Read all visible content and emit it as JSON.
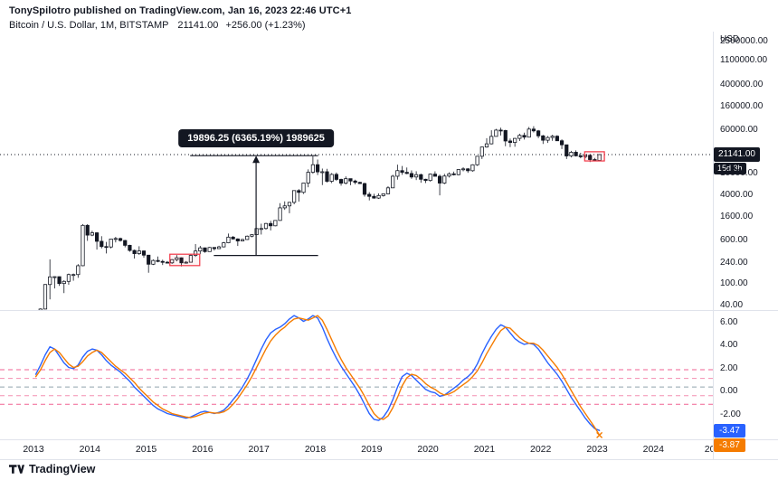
{
  "header": {
    "published_line": "TonySpilotro published on TradingView.com, Jan 16, 2023 22:46 UTC+1",
    "symbol_title": "Bitcoin / U.S. Dollar, 1M, BITSTAMP",
    "last_price": "21141.00",
    "change": "+256.00 (+1.23%)"
  },
  "price_scale": {
    "currency": "USD",
    "ticks": [
      {
        "label": "2500000.00",
        "value": 2500000
      },
      {
        "label": "1100000.00",
        "value": 1100000
      },
      {
        "label": "400000.00",
        "value": 400000
      },
      {
        "label": "160000.00",
        "value": 160000
      },
      {
        "label": "60000.00",
        "value": 60000
      },
      {
        "label": "10000.00",
        "value": 10000
      },
      {
        "label": "4000.00",
        "value": 4000
      },
      {
        "label": "1600.00",
        "value": 1600
      },
      {
        "label": "600.00",
        "value": 600
      },
      {
        "label": "240.00",
        "value": 240
      },
      {
        "label": "100.00",
        "value": 100
      },
      {
        "label": "40.00",
        "value": 40
      }
    ],
    "current_price_label": "21141.00",
    "countdown": "15d 3h"
  },
  "indicator": {
    "ticks": [
      {
        "label": "6.00",
        "value": 6
      },
      {
        "label": "4.00",
        "value": 4
      },
      {
        "label": "2.00",
        "value": 2
      },
      {
        "label": "0.00",
        "value": 0
      },
      {
        "label": "-2.00",
        "value": -2
      }
    ],
    "last_blue": "-3.47",
    "last_orange": "-3.87",
    "last_values": [
      -3.47,
      -3.87
    ],
    "colors": {
      "line": "#2962ff",
      "signal": "#f57c00"
    },
    "levels": [
      {
        "value": 1.8,
        "color": "#f06292"
      },
      {
        "value": 1.05,
        "color": "#f48fb1"
      },
      {
        "value": 0.3,
        "color": "#90a4ae"
      },
      {
        "value": -0.45,
        "color": "#f48fb1"
      },
      {
        "value": -1.2,
        "color": "#f06292"
      }
    ]
  },
  "time_scale": {
    "labels": [
      {
        "text": "2013",
        "t": 2013
      },
      {
        "text": "2014",
        "t": 2014
      },
      {
        "text": "2015",
        "t": 2015
      },
      {
        "text": "2016",
        "t": 2016
      },
      {
        "text": "2017",
        "t": 2017
      },
      {
        "text": "2018",
        "t": 2018
      },
      {
        "text": "2019",
        "t": 2019
      },
      {
        "text": "2020",
        "t": 2020
      },
      {
        "text": "2021",
        "t": 2021
      },
      {
        "text": "2022",
        "t": 2022
      },
      {
        "text": "2023",
        "t": 2023
      },
      {
        "text": "2024",
        "t": 2024
      },
      {
        "text": "20",
        "t": 2025
      }
    ]
  },
  "measurement": {
    "label": "19896.25 (6365.19%) 1989625",
    "arrow_time": 2016.95,
    "from_price": 312.5,
    "to_price": 20209,
    "top_line": {
      "t1": 2015.78,
      "t2": 2018.05
    },
    "bottom_line": {
      "t1": 2016.2,
      "t2": 2018.05
    }
  },
  "annotations": {
    "box_color": "#f23645",
    "boxes": [
      {
        "t1": 2015.42,
        "t2": 2015.95,
        "p1": 205,
        "p2": 330
      },
      {
        "t1": 2022.78,
        "t2": 2023.13,
        "p1": 16200,
        "p2": 23800
      }
    ]
  },
  "footer": {
    "logo_text": "TradingView",
    "logo_icon": "tradingview-mark"
  },
  "chart_data": [
    {
      "type": "candlestick",
      "title": "Bitcoin / U.S. Dollar, 1M, BITSTAMP",
      "interval": "1M",
      "x_start": "2013-01",
      "x_end": "2023-01",
      "y_scale": "log",
      "y_ticks": [
        2500000,
        1100000,
        400000,
        160000,
        60000,
        10000,
        4000,
        1600,
        600,
        240,
        100,
        40
      ],
      "current_price": 21141,
      "x_tick_years": [
        2013,
        2014,
        2015,
        2016,
        2017,
        2018,
        2019,
        2020,
        2021,
        2022,
        2023,
        2024
      ],
      "candles": [
        [
          13.5,
          21.1,
          12.8,
          20.4
        ],
        [
          20.4,
          34.4,
          19.6,
          33.4
        ],
        [
          33.4,
          94.7,
          33.0,
          93.0
        ],
        [
          93.0,
          266.0,
          50.0,
          128.0
        ],
        [
          128,
          131,
          79,
          129
        ],
        [
          129,
          130,
          88,
          97
        ],
        [
          97,
          111,
          65,
          106
        ],
        [
          106,
          147,
          92,
          141
        ],
        [
          141,
          147,
          109,
          141
        ],
        [
          141,
          218,
          123,
          204
        ],
        [
          204,
          1163,
          200,
          1100
        ],
        [
          1100,
          1155,
          576,
          732
        ],
        [
          732,
          880,
          700,
          806
        ],
        [
          806,
          830,
          400,
          565
        ],
        [
          565,
          700,
          420,
          454
        ],
        [
          454,
          550,
          340,
          446
        ],
        [
          446,
          630,
          420,
          622
        ],
        [
          622,
          680,
          540,
          635
        ],
        [
          635,
          660,
          560,
          585
        ],
        [
          585,
          600,
          440,
          478
        ],
        [
          478,
          490,
          365,
          386
        ],
        [
          386,
          400,
          275,
          338
        ],
        [
          338,
          460,
          320,
          378
        ],
        [
          378,
          385,
          285,
          317
        ],
        [
          317,
          320,
          152,
          217
        ],
        [
          217,
          265,
          210,
          254
        ],
        [
          254,
          300,
          236,
          244
        ],
        [
          244,
          262,
          210,
          236
        ],
        [
          236,
          248,
          225,
          230
        ],
        [
          230,
          268,
          220,
          263
        ],
        [
          263,
          318,
          245,
          284
        ],
        [
          284,
          288,
          198,
          230
        ],
        [
          230,
          248,
          223,
          236
        ],
        [
          236,
          334,
          234,
          314
        ],
        [
          314,
          504,
          295,
          377
        ],
        [
          377,
          467,
          330,
          430
        ],
        [
          430,
          436,
          351,
          368
        ],
        [
          368,
          447,
          365,
          437
        ],
        [
          437,
          440,
          384,
          416
        ],
        [
          416,
          470,
          410,
          448
        ],
        [
          448,
          550,
          438,
          531
        ],
        [
          531,
          780,
          520,
          673
        ],
        [
          673,
          706,
          605,
          624
        ],
        [
          624,
          640,
          465,
          573
        ],
        [
          573,
          630,
          565,
          609
        ],
        [
          609,
          720,
          600,
          700
        ],
        [
          700,
          755,
          670,
          745
        ],
        [
          745,
          982,
          740,
          963
        ],
        [
          963,
          1180,
          750,
          965
        ],
        [
          965,
          1220,
          920,
          1190
        ],
        [
          1190,
          1330,
          890,
          1080
        ],
        [
          1080,
          1360,
          1060,
          1351
        ],
        [
          1351,
          2780,
          1340,
          2286
        ],
        [
          2286,
          3000,
          2100,
          2480
        ],
        [
          2480,
          2930,
          1830,
          2875
        ],
        [
          2875,
          4750,
          2650,
          4703
        ],
        [
          4703,
          5000,
          2970,
          4360
        ],
        [
          4360,
          6470,
          4100,
          6440
        ],
        [
          6440,
          11400,
          5400,
          10100
        ],
        [
          10100,
          19666,
          9500,
          13850
        ],
        [
          13850,
          17200,
          9000,
          10265
        ],
        [
          10265,
          11790,
          5920,
          10325
        ],
        [
          10325,
          11650,
          6600,
          6928
        ],
        [
          6928,
          9760,
          6425,
          9240
        ],
        [
          9240,
          9990,
          7040,
          7494
        ],
        [
          7494,
          7750,
          5770,
          6404
        ],
        [
          6404,
          8500,
          6070,
          7735
        ],
        [
          7735,
          7770,
          5880,
          7011
        ],
        [
          7011,
          7410,
          6100,
          6625
        ],
        [
          6625,
          6810,
          6190,
          6305
        ],
        [
          6305,
          6540,
          3650,
          4017
        ],
        [
          4017,
          4410,
          3120,
          3693
        ],
        [
          3693,
          4110,
          3350,
          3437
        ],
        [
          3437,
          4190,
          3330,
          3816
        ],
        [
          3816,
          4140,
          3660,
          4102
        ],
        [
          4102,
          5640,
          4040,
          5269
        ],
        [
          5269,
          9090,
          5260,
          8558
        ],
        [
          8558,
          13880,
          7430,
          10818
        ],
        [
          10818,
          13130,
          9080,
          10080
        ],
        [
          10080,
          12320,
          9320,
          9594
        ],
        [
          9594,
          10940,
          7700,
          8293
        ],
        [
          8293,
          10540,
          7290,
          9140
        ],
        [
          9140,
          9520,
          6520,
          7541
        ],
        [
          7541,
          7690,
          6430,
          7160
        ],
        [
          7160,
          9570,
          6850,
          9350
        ],
        [
          9350,
          10500,
          8520,
          8543
        ],
        [
          8543,
          9170,
          3850,
          6424
        ],
        [
          6424,
          9460,
          6140,
          8620
        ],
        [
          8620,
          10070,
          8110,
          9448
        ],
        [
          9448,
          10380,
          8830,
          9132
        ],
        [
          9132,
          11420,
          8900,
          11335
        ],
        [
          11335,
          12480,
          10510,
          11644
        ],
        [
          11644,
          12050,
          9860,
          10776
        ],
        [
          10776,
          14100,
          10380,
          13797
        ],
        [
          13797,
          19870,
          13200,
          19698
        ],
        [
          19698,
          29300,
          17580,
          28990
        ],
        [
          28990,
          42000,
          28130,
          33108
        ],
        [
          33108,
          58350,
          32320,
          45164
        ],
        [
          45164,
          61800,
          44950,
          58763
        ],
        [
          58763,
          64900,
          46930,
          57694
        ],
        [
          57694,
          59500,
          30000,
          37298
        ],
        [
          37298,
          41330,
          28800,
          35026
        ],
        [
          35026,
          42235,
          29300,
          41553
        ],
        [
          41553,
          50500,
          37300,
          47130
        ],
        [
          47130,
          52920,
          39600,
          43824
        ],
        [
          43824,
          66999,
          43283,
          61299
        ],
        [
          61299,
          69000,
          53256,
          56882
        ],
        [
          56882,
          59100,
          42000,
          46211
        ],
        [
          46211,
          47990,
          32950,
          38498
        ],
        [
          38498,
          45821,
          34322,
          43160
        ],
        [
          43160,
          48240,
          37550,
          45510
        ],
        [
          45510,
          47450,
          37580,
          37630
        ],
        [
          37630,
          40020,
          26700,
          31784
        ],
        [
          31784,
          31980,
          17590,
          19942
        ],
        [
          19942,
          24668,
          18780,
          23303
        ],
        [
          23303,
          25211,
          19520,
          20046
        ],
        [
          20046,
          22799,
          18125,
          19424
        ],
        [
          19424,
          21085,
          18190,
          20490
        ],
        [
          20490,
          21480,
          15480,
          17163
        ],
        [
          17163,
          18385,
          16256,
          16537
        ],
        [
          16537,
          21474,
          16499,
          21141
        ]
      ]
    },
    {
      "type": "line",
      "title": "Momentum oscillator (lower pane)",
      "y_ticks": [
        6,
        4,
        2,
        0,
        -2
      ],
      "dashed_levels": [
        1.8,
        1.05,
        0.3,
        -0.45,
        -1.2
      ],
      "last_values": [
        -3.47,
        -3.87
      ],
      "series": [
        {
          "id": "blue",
          "name": "oscillator",
          "color": "#2962ff",
          "values": [
            1.4,
            2.2,
            3.1,
            3.8,
            3.6,
            3.0,
            2.4,
            2.0,
            1.9,
            2.2,
            2.9,
            3.4,
            3.6,
            3.5,
            3.1,
            2.6,
            2.2,
            1.9,
            1.6,
            1.2,
            0.8,
            0.3,
            -0.1,
            -0.5,
            -0.9,
            -1.3,
            -1.6,
            -1.8,
            -2.0,
            -2.1,
            -2.2,
            -2.3,
            -2.4,
            -2.3,
            -2.1,
            -1.9,
            -1.8,
            -1.9,
            -2.0,
            -1.9,
            -1.7,
            -1.3,
            -0.8,
            -0.3,
            0.3,
            1.0,
            1.8,
            2.7,
            3.6,
            4.4,
            5.0,
            5.3,
            5.5,
            5.8,
            6.2,
            6.5,
            6.3,
            6.0,
            6.2,
            6.5,
            6.3,
            5.5,
            4.5,
            3.6,
            2.8,
            2.1,
            1.5,
            0.9,
            0.3,
            -0.4,
            -1.2,
            -2.0,
            -2.5,
            -2.6,
            -2.3,
            -1.7,
            -0.8,
            0.3,
            1.2,
            1.5,
            1.3,
            0.9,
            0.5,
            0.1,
            -0.1,
            -0.2,
            -0.5,
            -0.4,
            -0.1,
            0.2,
            0.5,
            0.9,
            1.2,
            1.6,
            2.3,
            3.2,
            4.0,
            4.7,
            5.3,
            5.7,
            5.5,
            5.0,
            4.5,
            4.2,
            4.0,
            4.1,
            4.0,
            3.6,
            3.0,
            2.4,
            1.9,
            1.4,
            0.8,
            0.1,
            -0.6,
            -1.2,
            -1.8,
            -2.4,
            -2.9,
            -3.3,
            -3.47
          ]
        },
        {
          "id": "orange",
          "name": "signal",
          "color": "#f57c00",
          "values": [
            1.2,
            1.8,
            2.6,
            3.3,
            3.6,
            3.3,
            2.8,
            2.3,
            2.0,
            2.1,
            2.5,
            3.0,
            3.3,
            3.5,
            3.3,
            2.9,
            2.5,
            2.1,
            1.8,
            1.5,
            1.1,
            0.7,
            0.2,
            -0.2,
            -0.6,
            -1.0,
            -1.3,
            -1.6,
            -1.8,
            -2.0,
            -2.1,
            -2.2,
            -2.3,
            -2.35,
            -2.25,
            -2.1,
            -1.95,
            -1.9,
            -1.95,
            -1.95,
            -1.85,
            -1.6,
            -1.2,
            -0.7,
            -0.1,
            0.5,
            1.2,
            2.0,
            2.8,
            3.6,
            4.3,
            4.8,
            5.2,
            5.5,
            5.9,
            6.2,
            6.3,
            6.2,
            6.1,
            6.3,
            6.5,
            6.1,
            5.3,
            4.4,
            3.5,
            2.7,
            2.0,
            1.4,
            0.8,
            0.2,
            -0.5,
            -1.3,
            -2.0,
            -2.4,
            -2.5,
            -2.2,
            -1.5,
            -0.6,
            0.4,
            1.1,
            1.4,
            1.3,
            1.0,
            0.6,
            0.3,
            0.1,
            -0.2,
            -0.4,
            -0.3,
            -0.1,
            0.2,
            0.5,
            0.8,
            1.2,
            1.7,
            2.4,
            3.2,
            3.9,
            4.6,
            5.2,
            5.5,
            5.4,
            5.0,
            4.6,
            4.3,
            4.1,
            4.1,
            3.9,
            3.5,
            3.0,
            2.5,
            2.0,
            1.4,
            0.7,
            0.0,
            -0.7,
            -1.4,
            -2.0,
            -2.6,
            -3.2,
            -3.87
          ]
        }
      ]
    }
  ]
}
